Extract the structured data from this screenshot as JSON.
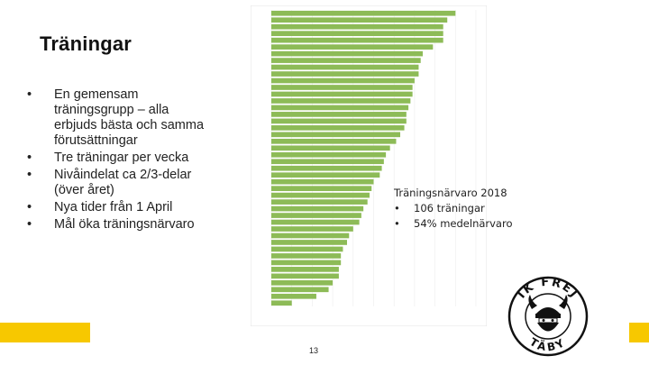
{
  "slide": {
    "title": "Träningar",
    "bullets": [
      "En gemensam träningsgrupp – alla erbjuds bästa och samma förutsättningar",
      "Tre träningar per vecka",
      "Nivåindelat ca 2/3-delar (över året)",
      "Nya tider från 1 April",
      "Mål öka träningsnärvaro"
    ],
    "info": {
      "title": "Träningsnärvaro 2018",
      "items": [
        "106 träningar",
        "54% medelnärvaro"
      ]
    },
    "page_number": "13",
    "logo_text": {
      "top": "IK FREJ",
      "bottom": "TÄBY"
    }
  },
  "colors": {
    "bar": "#8dbb57",
    "accent": "#f7c800",
    "text": "#222222"
  },
  "chart_data": {
    "type": "bar",
    "orientation": "horizontal",
    "values": [
      90,
      86,
      84,
      84,
      84,
      79,
      74,
      73,
      72,
      72,
      70,
      69,
      69,
      68,
      67,
      66,
      66,
      65,
      63,
      61,
      58,
      56,
      55,
      54,
      53,
      50,
      49,
      48,
      47,
      45,
      44,
      43,
      40,
      38,
      37,
      35,
      34,
      34,
      33,
      33,
      30,
      28,
      22,
      10
    ],
    "xlim": [
      0,
      100
    ],
    "grid": true
  }
}
